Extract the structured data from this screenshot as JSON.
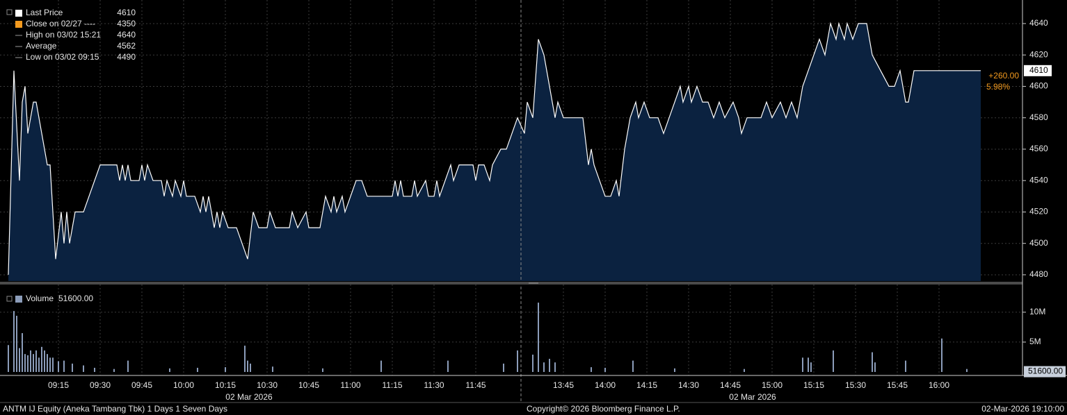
{
  "chart_data": [
    {
      "type": "area",
      "x": [
        "08:57",
        "08:59",
        "09:01",
        "09:02",
        "09:03",
        "09:04",
        "09:06",
        "09:07",
        "09:09",
        "09:11",
        "09:12",
        "09:14",
        "09:16",
        "09:17",
        "09:18",
        "09:19",
        "09:21",
        "09:24",
        "09:26",
        "09:28",
        "09:30",
        "09:36",
        "09:37",
        "09:38",
        "09:39",
        "09:40",
        "09:41",
        "09:44",
        "09:45",
        "09:46",
        "09:47",
        "09:49",
        "09:52",
        "09:53",
        "09:54",
        "09:56",
        "09:57",
        "09:59",
        "10:00",
        "10:01",
        "10:04",
        "10:06",
        "10:07",
        "10:08",
        "10:09",
        "10:11",
        "10:12",
        "10:13",
        "10:14",
        "10:16",
        "10:19",
        "10:23",
        "10:25",
        "10:27",
        "10:30",
        "10:31",
        "10:33",
        "10:38",
        "10:39",
        "10:41",
        "10:44",
        "10:45",
        "10:49",
        "10:51",
        "10:53",
        "10:54",
        "10:55",
        "10:57",
        "10:58",
        "11:00",
        "11:02",
        "11:04",
        "11:06",
        "11:15",
        "11:16",
        "11:17",
        "11:18",
        "11:19",
        "11:22",
        "11:23",
        "11:24",
        "11:27",
        "11:28",
        "11:30",
        "11:31",
        "11:32",
        "11:34",
        "11:36",
        "11:37",
        "11:39",
        "11:44",
        "11:45",
        "11:46",
        "11:48",
        "11:50",
        "11:51",
        "11:54",
        "11:56",
        "11:58",
        "12:00",
        "13:31",
        "13:32",
        "13:34",
        "13:36",
        "13:38",
        "13:40",
        "13:42",
        "13:43",
        "13:45",
        "13:52",
        "13:54",
        "13:55",
        "13:56",
        "13:58",
        "14:00",
        "14:02",
        "14:04",
        "14:05",
        "14:07",
        "14:09",
        "14:11",
        "14:12",
        "14:14",
        "14:16",
        "14:19",
        "14:21",
        "14:23",
        "14:25",
        "14:27",
        "14:28",
        "14:30",
        "14:31",
        "14:33",
        "14:35",
        "14:37",
        "14:39",
        "14:41",
        "14:43",
        "14:46",
        "14:48",
        "14:49",
        "14:51",
        "14:53",
        "14:56",
        "14:58",
        "15:00",
        "15:03",
        "15:05",
        "15:07",
        "15:09",
        "15:11",
        "15:13",
        "15:15",
        "15:17",
        "15:19",
        "15:21",
        "15:23",
        "15:24",
        "15:26",
        "15:27",
        "15:29",
        "15:31",
        "15:34",
        "15:36",
        "15:39",
        "15:42",
        "15:44",
        "15:46",
        "15:48",
        "15:49",
        "15:51",
        "16:15"
      ],
      "series": [
        {
          "color": "#ffffff",
          "values": [
            4480,
            4610,
            4540,
            4590,
            4600,
            4570,
            4590,
            4590,
            4570,
            4550,
            4550,
            4490,
            4520,
            4500,
            4520,
            4500,
            4520,
            4520,
            4530,
            4540,
            4550,
            4550,
            4540,
            4550,
            4540,
            4550,
            4540,
            4540,
            4550,
            4540,
            4550,
            4540,
            4540,
            4530,
            4540,
            4530,
            4540,
            4530,
            4540,
            4530,
            4530,
            4520,
            4530,
            4520,
            4530,
            4510,
            4520,
            4510,
            4520,
            4510,
            4510,
            4490,
            4520,
            4510,
            4510,
            4520,
            4510,
            4510,
            4520,
            4510,
            4520,
            4510,
            4510,
            4530,
            4520,
            4530,
            4520,
            4530,
            4520,
            4530,
            4540,
            4540,
            4530,
            4530,
            4540,
            4530,
            4540,
            4530,
            4530,
            4540,
            4530,
            4540,
            4530,
            4530,
            4540,
            4530,
            4540,
            4550,
            4540,
            4550,
            4550,
            4540,
            4550,
            4550,
            4540,
            4550,
            4560,
            4560,
            4570,
            4580,
            4570,
            4590,
            4580,
            4630,
            4620,
            4600,
            4580,
            4590,
            4580,
            4580,
            4550,
            4560,
            4550,
            4540,
            4530,
            4530,
            4540,
            4530,
            4560,
            4580,
            4590,
            4580,
            4590,
            4580,
            4580,
            4570,
            4580,
            4590,
            4600,
            4590,
            4600,
            4590,
            4600,
            4590,
            4590,
            4580,
            4590,
            4580,
            4590,
            4580,
            4570,
            4580,
            4580,
            4580,
            4590,
            4580,
            4590,
            4580,
            4590,
            4580,
            4600,
            4610,
            4620,
            4630,
            4620,
            4640,
            4630,
            4640,
            4630,
            4640,
            4630,
            4640,
            4640,
            4620,
            4610,
            4600,
            4600,
            4610,
            4590,
            4590,
            4610,
            4610
          ]
        }
      ],
      "fill": "#0b2240",
      "ylim": [
        4476,
        4655
      ],
      "yticks": [
        4480,
        4500,
        4520,
        4540,
        4560,
        4580,
        4600,
        4620,
        4640
      ],
      "grid": true,
      "legend": [
        {
          "name": "Last Price",
          "value": 4610,
          "color": "#ffffff"
        },
        {
          "name": "Close on 02/27 ----",
          "value": 4350,
          "color": "#f39a1e"
        },
        {
          "name": "High on 03/02 15:21",
          "value": 4640,
          "color": "#9a9a9a"
        },
        {
          "name": "Average",
          "value": 4562,
          "color": "#9a9a9a"
        },
        {
          "name": "Low on 03/02 09:15",
          "value": 4490,
          "color": "#9a9a9a"
        }
      ],
      "last_value": 4610,
      "change": {
        "value": 260,
        "label": "+260.00"
      },
      "change_pct": {
        "value": 5.98,
        "label": "5.98%"
      },
      "annotation_color": "#f39a1e"
    },
    {
      "type": "bar",
      "x": [
        "08:57",
        "08:59",
        "09:00",
        "09:01",
        "09:02",
        "09:03",
        "09:04",
        "09:05",
        "09:06",
        "09:07",
        "09:08",
        "09:09",
        "09:10",
        "09:11",
        "09:12",
        "09:13",
        "09:15",
        "09:17",
        "09:20",
        "09:24",
        "09:28",
        "09:35",
        "09:40",
        "09:55",
        "10:05",
        "10:15",
        "10:22",
        "10:23",
        "10:24",
        "10:32",
        "10:50",
        "11:11",
        "11:35",
        "11:55",
        "12:00",
        "13:34",
        "13:36",
        "13:38",
        "13:40",
        "13:42",
        "13:55",
        "14:00",
        "14:10",
        "14:25",
        "14:50",
        "15:11",
        "15:13",
        "15:14",
        "15:22",
        "15:36",
        "15:37",
        "15:48",
        "16:01",
        "16:10"
      ],
      "values": [
        4500000,
        10200000,
        9400000,
        4000000,
        6500000,
        3000000,
        2800000,
        3600000,
        3000000,
        3600000,
        2400000,
        4200000,
        3600000,
        3000000,
        2400000,
        2400000,
        1800000,
        1900000,
        1400000,
        1100000,
        700000,
        500000,
        1900000,
        600000,
        700000,
        800000,
        4400000,
        1900000,
        1400000,
        900000,
        600000,
        1900000,
        1900000,
        1400000,
        3600000,
        2900000,
        11600000,
        1600000,
        2200000,
        1600000,
        800000,
        700000,
        1900000,
        600000,
        500000,
        2400000,
        2400000,
        1600000,
        3600000,
        3300000,
        1600000,
        1900000,
        5600000,
        500000
      ],
      "color": "#8c9dba",
      "ylim": [
        0,
        13700000
      ],
      "yticks": [
        {
          "value": 5000000,
          "label": "5M"
        },
        {
          "value": 10000000,
          "label": "10M"
        }
      ],
      "xticks": [
        "09:15",
        "09:30",
        "09:45",
        "10:00",
        "10:15",
        "10:30",
        "10:45",
        "11:00",
        "11:15",
        "11:30",
        "11:45",
        "13:45",
        "14:00",
        "14:15",
        "14:30",
        "14:45",
        "15:00",
        "15:15",
        "15:30",
        "15:45",
        "16:00"
      ],
      "date_labels": [
        "02 Mar 2026",
        "02 Mar 2026"
      ],
      "legend": {
        "name": "Volume",
        "value": 51600,
        "label": "51600.00"
      },
      "last_value": {
        "value": 51600,
        "label": "51600.00"
      }
    }
  ],
  "footer": {
    "left": "ANTM IJ Equity (Aneka Tambang Tbk) 1 Days 1 Seven Days",
    "center": "Copyright© 2026 Bloomberg Finance L.P.",
    "right": "02-Mar-2026 19:10:00"
  }
}
